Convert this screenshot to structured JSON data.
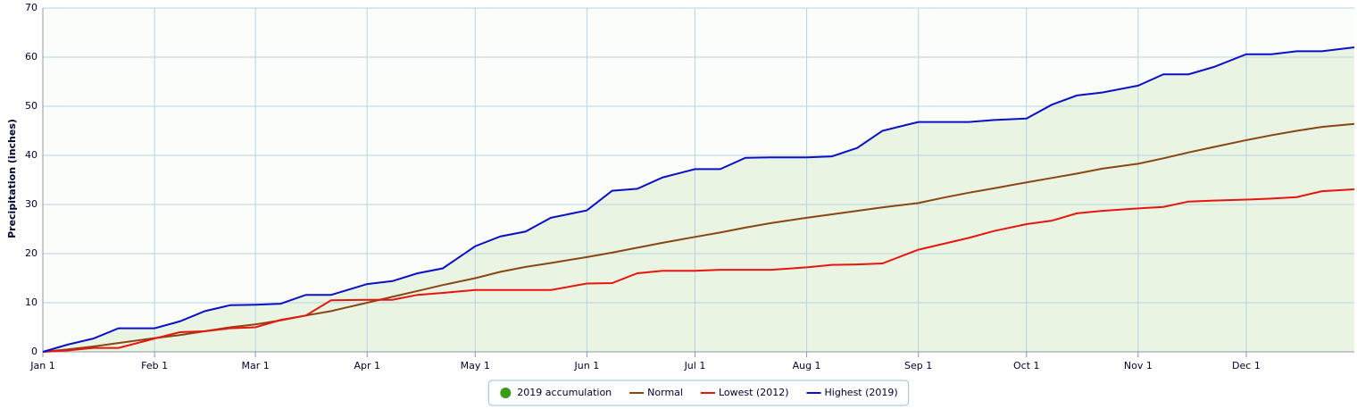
{
  "chart_data": {
    "type": "line",
    "y_label": "Precipitation (inches)",
    "x": [
      0,
      7,
      14,
      21,
      31,
      38,
      45,
      52,
      59,
      66,
      73,
      80,
      90,
      97,
      104,
      111,
      120,
      127,
      134,
      141,
      151,
      158,
      165,
      172,
      181,
      188,
      195,
      202,
      212,
      219,
      226,
      233,
      243,
      250,
      257,
      264,
      273,
      280,
      287,
      294,
      304,
      311,
      318,
      325,
      334,
      341,
      348,
      355,
      364
    ],
    "xlim": [
      0,
      364
    ],
    "xticks": [
      {
        "value": 0,
        "label": "Jan 1"
      },
      {
        "value": 31,
        "label": "Feb 1"
      },
      {
        "value": 59,
        "label": "Mar 1"
      },
      {
        "value": 90,
        "label": "Apr 1"
      },
      {
        "value": 120,
        "label": "May 1"
      },
      {
        "value": 151,
        "label": "Jun 1"
      },
      {
        "value": 181,
        "label": "Jul 1"
      },
      {
        "value": 212,
        "label": "Aug 1"
      },
      {
        "value": 243,
        "label": "Sep 1"
      },
      {
        "value": 273,
        "label": "Oct 1"
      },
      {
        "value": 304,
        "label": "Nov 1"
      },
      {
        "value": 334,
        "label": "Dec 1"
      }
    ],
    "ylim": [
      0,
      70
    ],
    "yticks": [
      0,
      10,
      20,
      30,
      40,
      50,
      60,
      70
    ],
    "grid": true,
    "legend": "bottom",
    "series": [
      {
        "name": "2019 accumulation",
        "style": "area",
        "color": "#3a9a1a",
        "fill": "#e9f4e2",
        "values": [
          0,
          1.5,
          2.7,
          4.8,
          4.8,
          6.2,
          8.3,
          9.5,
          9.6,
          9.8,
          11.6,
          11.6,
          13.8,
          14.4,
          16.0,
          17.0,
          21.5,
          23.5,
          24.5,
          27.3,
          28.8,
          32.8,
          33.2,
          35.5,
          37.2,
          37.2,
          39.5,
          39.6,
          39.6,
          39.8,
          41.5,
          45.0,
          46.8,
          46.8,
          46.8,
          47.2,
          47.5,
          50.3,
          52.2,
          52.8,
          54.2,
          56.5,
          56.5,
          58.0,
          60.6,
          60.6,
          61.2,
          61.2,
          62.0
        ]
      },
      {
        "name": "Normal",
        "style": "line",
        "color": "#8b4513",
        "values": [
          0,
          0.5,
          1.1,
          1.8,
          2.8,
          3.4,
          4.2,
          5.0,
          5.6,
          6.4,
          7.4,
          8.3,
          10.0,
          11.2,
          12.4,
          13.6,
          15.0,
          16.3,
          17.3,
          18.1,
          19.3,
          20.2,
          21.2,
          22.2,
          23.4,
          24.3,
          25.3,
          26.2,
          27.3,
          28.0,
          28.7,
          29.4,
          30.3,
          31.4,
          32.4,
          33.3,
          34.5,
          35.4,
          36.3,
          37.3,
          38.3,
          39.4,
          40.6,
          41.7,
          43.1,
          44.1,
          45.0,
          45.8,
          46.4
        ]
      },
      {
        "name": "Lowest (2012)",
        "style": "line",
        "color": "#e8150f",
        "values": [
          0,
          0.3,
          0.8,
          0.8,
          2.7,
          4.0,
          4.2,
          4.8,
          5.0,
          6.5,
          7.4,
          10.5,
          10.6,
          10.6,
          11.6,
          12.0,
          12.6,
          12.6,
          12.6,
          12.6,
          13.9,
          14.0,
          16.0,
          16.5,
          16.5,
          16.7,
          16.7,
          16.7,
          17.2,
          17.7,
          17.8,
          18.0,
          20.8,
          22.0,
          23.2,
          24.6,
          26.0,
          26.7,
          28.2,
          28.7,
          29.2,
          29.5,
          30.6,
          30.8,
          31.0,
          31.2,
          31.5,
          32.7,
          33.1
        ]
      },
      {
        "name": "Highest (2019)",
        "style": "line",
        "color": "#0a10c8",
        "values": [
          0,
          1.5,
          2.7,
          4.8,
          4.8,
          6.2,
          8.3,
          9.5,
          9.6,
          9.8,
          11.6,
          11.6,
          13.8,
          14.4,
          16.0,
          17.0,
          21.5,
          23.5,
          24.5,
          27.3,
          28.8,
          32.8,
          33.2,
          35.5,
          37.2,
          37.2,
          39.5,
          39.6,
          39.6,
          39.8,
          41.5,
          45.0,
          46.8,
          46.8,
          46.8,
          47.2,
          47.5,
          50.3,
          52.2,
          52.8,
          54.2,
          56.5,
          56.5,
          58.0,
          60.6,
          60.6,
          61.2,
          61.2,
          62.0
        ]
      }
    ]
  }
}
